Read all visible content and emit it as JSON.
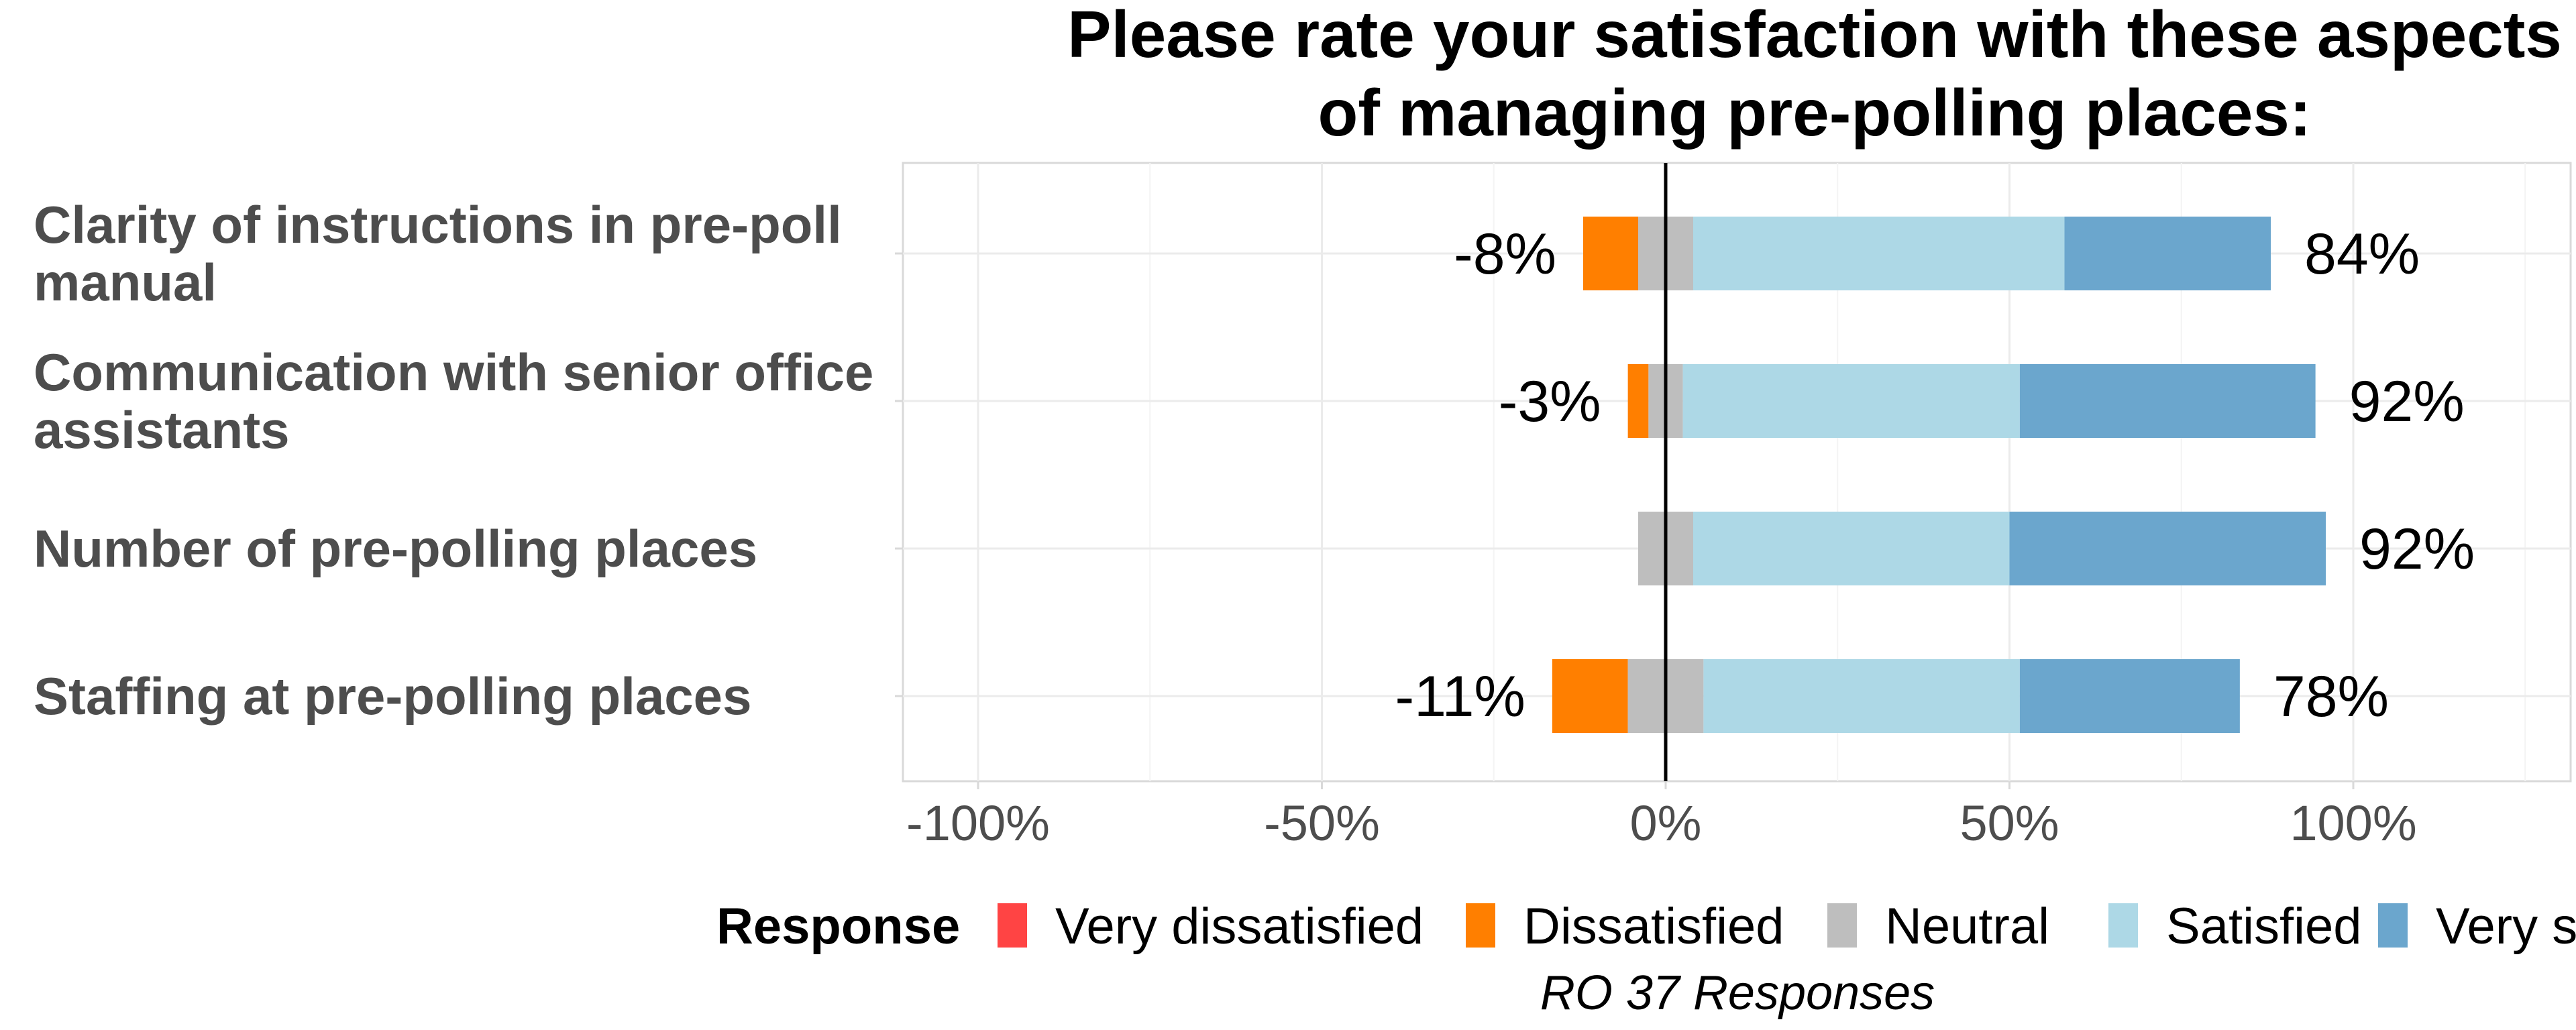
{
  "chart_data": {
    "type": "bar",
    "orientation": "horizontal-diverging",
    "title_lines": [
      "Please rate your satisfaction with these aspects",
      "of managing pre-polling places:"
    ],
    "caption": "RO 37 Responses",
    "legend_title": "Response",
    "legend_position": "bottom",
    "grid": true,
    "xlim": [
      -110,
      130
    ],
    "x_ticks": [
      -100,
      -50,
      0,
      50,
      100
    ],
    "x_tick_labels": [
      "-100%",
      "-50%",
      "0%",
      "50%",
      "100%"
    ],
    "categories": [
      {
        "lines": [
          "Clarity of instructions in pre-poll",
          "manual"
        ]
      },
      {
        "lines": [
          "Communication with senior office",
          "assistants"
        ]
      },
      {
        "lines": [
          "Number of pre-polling places"
        ]
      },
      {
        "lines": [
          "Staffing at pre-polling places"
        ]
      }
    ],
    "series": [
      {
        "name": "Very dissatisfied",
        "color": "#ff4444",
        "values": [
          0,
          0,
          0,
          0
        ]
      },
      {
        "name": "Dissatisfied",
        "color": "#ff7f00",
        "values": [
          8,
          3,
          0,
          11
        ]
      },
      {
        "name": "Neutral",
        "color": "#bebebe",
        "values": [
          8,
          5,
          8,
          11
        ]
      },
      {
        "name": "Satisfied",
        "color": "#add8e6",
        "values": [
          54,
          49,
          46,
          46
        ]
      },
      {
        "name": "Very satisfied",
        "color": "#6ba6cd",
        "values": [
          30,
          43,
          46,
          32
        ]
      }
    ],
    "negative_labels": [
      "-8%",
      "-3%",
      "",
      "-11%"
    ],
    "positive_labels": [
      "84%",
      "92%",
      "92%",
      "78%"
    ]
  }
}
